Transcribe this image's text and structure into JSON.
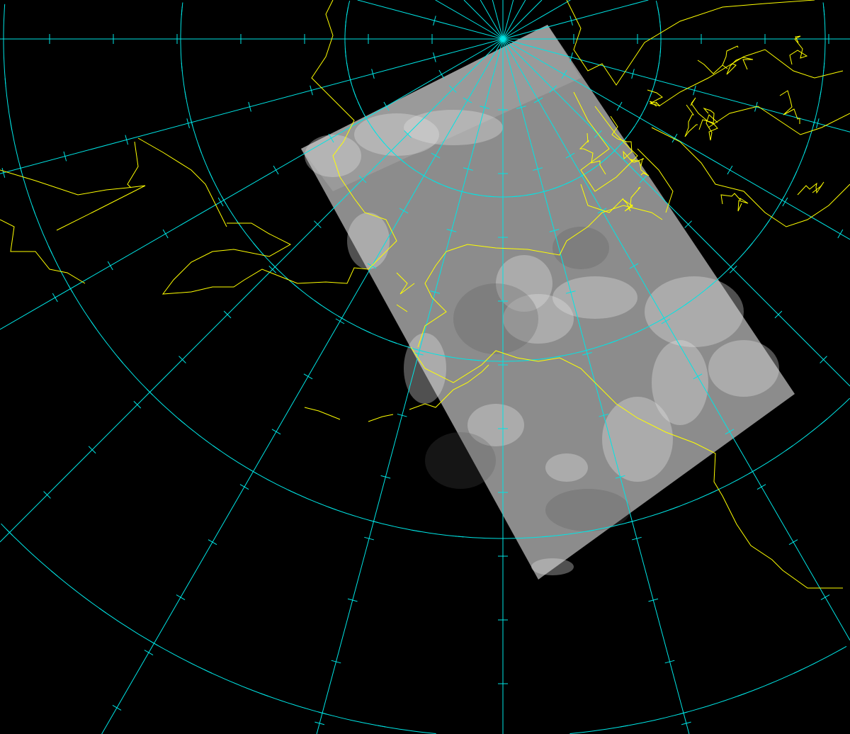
{
  "map": {
    "projection": "polar-stereographic",
    "background_color": "#000000",
    "graticule_color": "#00e5e5",
    "coastline_color": "#ffff00",
    "imagery_base_color": "#8c8c8c",
    "cloud_color": "#e6e6e6",
    "meridian_spacing_deg": 15,
    "parallel_count": 4
  }
}
